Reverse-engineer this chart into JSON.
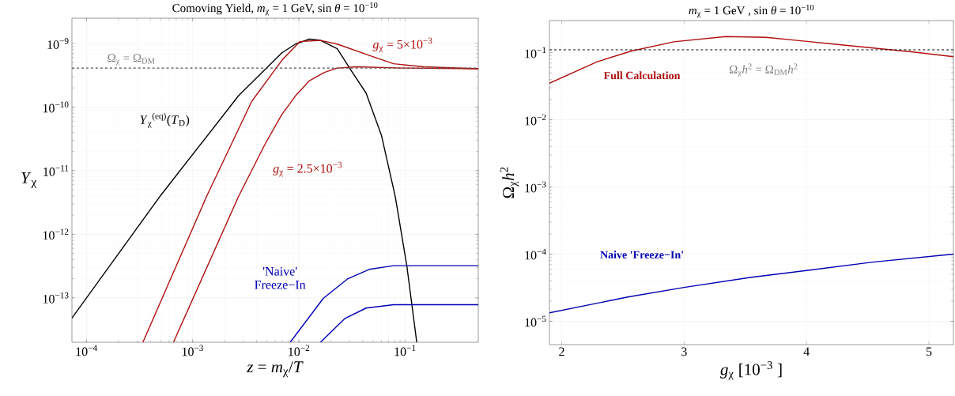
{
  "chart_data": [
    {
      "type": "line",
      "title": "Comoving Yield, *m*$_{χ}$ = 1 GeV,  sin *θ* = 10$^{−10}$",
      "xlabel": "*z* = *m*$_{χ}$/*T*",
      "ylabel": "*Y*$_{χ}$",
      "log": "xy",
      "grid": true,
      "xlim": [
        7.3e-05,
        0.49
      ],
      "ylim": [
        2e-14,
        2.5e-09
      ],
      "xticks": [
        {
          "value": 0.0001,
          "label": "10$^{−4}$"
        },
        {
          "value": 0.001,
          "label": "10$^{−3}$"
        },
        {
          "value": 0.01,
          "label": "10$^{−2}$"
        },
        {
          "value": 0.1,
          "label": "10$^{−1}$"
        }
      ],
      "yticks": [
        {
          "value": 1e-13,
          "label": "10$^{−13}$"
        },
        {
          "value": 1e-12,
          "label": "10$^{−12}$"
        },
        {
          "value": 1e-11,
          "label": "10$^{−11}$"
        },
        {
          "value": 1e-10,
          "label": "10$^{−10}$"
        },
        {
          "value": 1e-09,
          "label": "10$^{−9}$"
        }
      ],
      "ref_lines": [
        {
          "axis": "y",
          "value": 4.1e-10,
          "label": "Ω$_{χ}$ = Ω$_{DM}$",
          "color": "#555555",
          "line_style": "dashed"
        }
      ],
      "series": [
        {
          "color": "#000000",
          "x": [
            7.3e-05,
            0.00049,
            0.0027,
            0.0069,
            0.0093,
            0.0126,
            0.016,
            0.023,
            0.031,
            0.043,
            0.06,
            0.081,
            0.104,
            0.129
          ],
          "values": [
            4.8e-14,
            3.9e-12,
            1.5e-10,
            7.1e-10,
            9.8e-10,
            1.17e-09,
            1.12e-09,
            8.3e-10,
            3.8e-10,
            1.66e-10,
            3.6e-11,
            3.9e-12,
            3.2e-13,
            2e-14
          ]
        },
        {
          "color": "#b01010",
          "x": [
            0.00034,
            0.00135,
            0.0036,
            0.0069,
            0.0102,
            0.016,
            0.023,
            0.045,
            0.078,
            0.15,
            0.49
          ],
          "values": [
            2e-14,
            3.9e-12,
            1.23e-10,
            5.4e-10,
            1.07e-09,
            1.12e-09,
            9.8e-10,
            6.6e-10,
            4.8e-10,
            4.3e-10,
            4e-10
          ]
        },
        {
          "color": "#b01010",
          "x": [
            0.00066,
            0.0027,
            0.0048,
            0.0069,
            0.0093,
            0.0126,
            0.0174,
            0.023,
            0.035,
            0.1,
            0.49
          ],
          "values": [
            2e-14,
            3.9e-12,
            2.6e-11,
            7.6e-11,
            1.5e-10,
            2.6e-10,
            3.5e-10,
            4.1e-10,
            4.3e-10,
            4.1e-10,
            4e-10
          ]
        },
        {
          "color": "#0000b4",
          "x": [
            0.0083,
            0.017,
            0.029,
            0.046,
            0.078,
            0.49
          ],
          "values": [
            2e-14,
            9.8e-14,
            2e-13,
            2.8e-13,
            3.2e-13,
            3.2e-13
          ]
        },
        {
          "color": "#0000b4",
          "x": [
            0.016,
            0.027,
            0.043,
            0.078,
            0.49
          ],
          "values": [
            2e-14,
            4.7e-14,
            6.9e-14,
            7.8e-14,
            7.8e-14
          ]
        }
      ],
      "annotations": [
        "*Y*$_{χ}$$^{(eq)}$(*T*$_{D}$)",
        "*g*$_{χ}$ = 5×10$^{−3}$",
        "*g*$_{χ}$ = 2.5×10$^{−3}$",
        "'Naive' Freeze−In"
      ]
    },
    {
      "type": "line",
      "title": "*m*$_{χ}$ = 1 GeV ,  sin *θ* = 10$^{−10}$",
      "xlabel": "*g*$_{χ}$ [10$^{−3}$ ]",
      "ylabel": "Ω$_{χ}$*h*$^{2}$",
      "log": "y",
      "grid": true,
      "xlim": [
        1.9,
        5.2
      ],
      "ylim": [
        4.5e-06,
        0.3
      ],
      "xticks": [
        2,
        3,
        4,
        5
      ],
      "yticks": [
        {
          "value": 1e-05,
          "label": "10$^{−5}$"
        },
        {
          "value": 0.0001,
          "label": "10$^{−4}$"
        },
        {
          "value": 0.001,
          "label": "10$^{−3}$"
        },
        {
          "value": 0.01,
          "label": "10$^{−2}$"
        },
        {
          "value": 0.1,
          "label": "10$^{−1}$"
        }
      ],
      "ref_lines": [
        {
          "axis": "y",
          "value": 0.11,
          "label": "Ω$_{χ}$*h*$^{2}$ = Ω$_{DM}$*h*$^{2}$",
          "color": "#000000",
          "line_style": "dashed"
        }
      ],
      "series": [
        {
          "color": "#b01010",
          "x": [
            1.9,
            2.29,
            2.565,
            2.916,
            3.34,
            3.67,
            4.17,
            4.87,
            5.2
          ],
          "values": [
            0.035,
            0.073,
            0.105,
            0.145,
            0.173,
            0.169,
            0.137,
            0.102,
            0.087
          ]
        },
        {
          "color": "#0000b4",
          "x": [
            1.9,
            2.54,
            3.0,
            3.54,
            4.0,
            4.54,
            5.2
          ],
          "values": [
            1.34e-05,
            2.3e-05,
            3.2e-05,
            4.5e-05,
            5.7e-05,
            7.6e-05,
            0.0001
          ]
        }
      ],
      "annotations": [
        "Full Calculation",
        "Naive 'Freeze−In'"
      ]
    }
  ]
}
